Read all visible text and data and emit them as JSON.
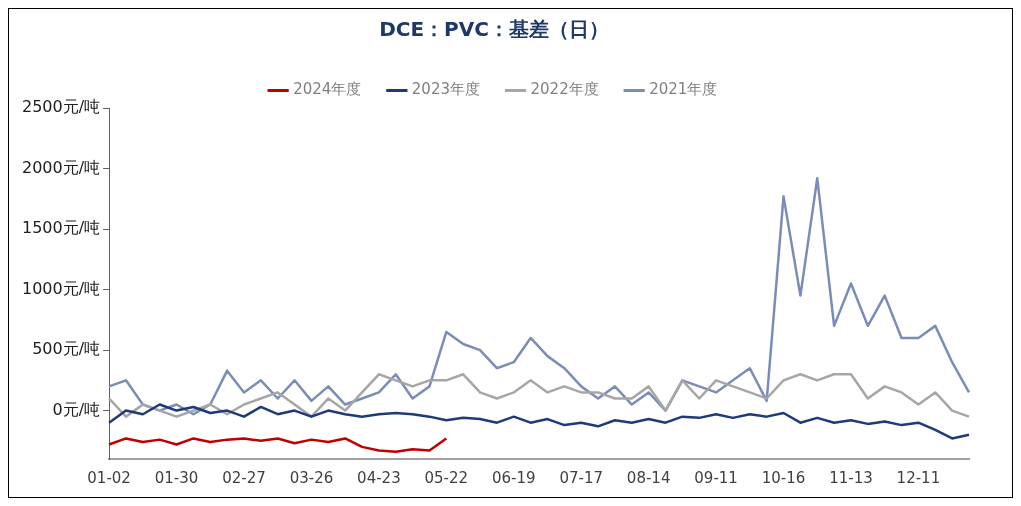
{
  "chart_data": {
    "type": "line",
    "title": "DCE：PVC：基差（日）",
    "categories": [
      "01-02",
      null,
      null,
      null,
      "01-30",
      null,
      null,
      null,
      "02-27",
      null,
      null,
      null,
      "03-26",
      null,
      null,
      null,
      "04-23",
      null,
      null,
      null,
      "05-22",
      null,
      null,
      null,
      "06-19",
      null,
      null,
      null,
      "07-17",
      null,
      null,
      null,
      "08-14",
      null,
      null,
      null,
      "09-11",
      null,
      null,
      null,
      "10-16",
      null,
      null,
      null,
      "11-13",
      null,
      null,
      null,
      "12-11",
      null,
      null,
      null
    ],
    "series": [
      {
        "name": "2024年度",
        "color": "#c00000",
        "values": [
          -280,
          -230,
          -260,
          -240,
          -280,
          -230,
          -260,
          -240,
          -230,
          -250,
          -230,
          -270,
          -240,
          -260,
          -230,
          -300,
          -330,
          -340,
          -320,
          -330,
          -230,
          null,
          null,
          null,
          null,
          null,
          null,
          null,
          null,
          null,
          null,
          null,
          null,
          null,
          null,
          null,
          null,
          null,
          null,
          null,
          null,
          null,
          null,
          null,
          null,
          null,
          null,
          null,
          null,
          null,
          null,
          null
        ]
      },
      {
        "name": "2023年度",
        "color": "#1f3a7a",
        "values": [
          -100,
          0,
          -30,
          50,
          0,
          30,
          -20,
          0,
          -50,
          30,
          -30,
          0,
          -50,
          0,
          -30,
          -50,
          -30,
          -20,
          -30,
          -50,
          -80,
          -60,
          -70,
          -100,
          -50,
          -100,
          -70,
          -120,
          -100,
          -130,
          -80,
          -100,
          -70,
          -100,
          -50,
          -60,
          -30,
          -60,
          -30,
          -50,
          -20,
          -100,
          -60,
          -100,
          -80,
          -110,
          -90,
          -120,
          -100,
          -160,
          -230,
          -200
        ]
      },
      {
        "name": "2022年度",
        "color": "#a6a6a6",
        "values": [
          100,
          -50,
          50,
          0,
          -50,
          0,
          50,
          -30,
          50,
          100,
          150,
          50,
          -50,
          100,
          0,
          150,
          300,
          250,
          200,
          250,
          250,
          300,
          150,
          100,
          150,
          250,
          150,
          200,
          150,
          150,
          100,
          100,
          200,
          0,
          250,
          100,
          250,
          200,
          150,
          100,
          250,
          300,
          250,
          300,
          300,
          100,
          200,
          150,
          50,
          150,
          0,
          -50
        ]
      },
      {
        "name": "2021年度",
        "color": "#7b8db5",
        "values": [
          200,
          250,
          50,
          0,
          50,
          -30,
          50,
          330,
          150,
          250,
          100,
          250,
          80,
          200,
          50,
          100,
          150,
          300,
          100,
          200,
          650,
          550,
          500,
          350,
          400,
          600,
          450,
          350,
          200,
          100,
          200,
          50,
          150,
          0,
          250,
          200,
          150,
          250,
          350,
          80,
          1770,
          950,
          1920,
          700,
          1050,
          700,
          950,
          600,
          600,
          700,
          400,
          150
        ]
      }
    ],
    "ylim": [
      -400,
      2500
    ],
    "yticks": [
      {
        "value": 0,
        "label": "0元/吨"
      },
      {
        "value": 500,
        "label": "500元/吨"
      },
      {
        "value": 1000,
        "label": "1000元/吨"
      },
      {
        "value": 1500,
        "label": "1500元/吨"
      },
      {
        "value": 2000,
        "label": "2000元/吨"
      },
      {
        "value": 2500,
        "label": "2500元/吨"
      }
    ],
    "legend": "top",
    "grid": false,
    "marker": "none",
    "line_style": "solid"
  }
}
